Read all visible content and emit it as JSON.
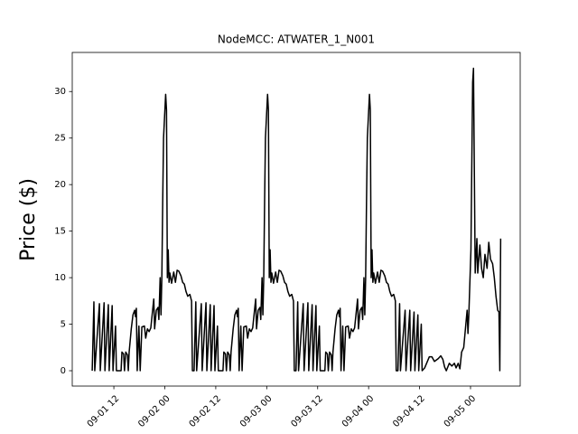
{
  "chart_data": {
    "type": "line",
    "title": "NodeMCC: ATWATER_1_N001",
    "ylabel": "Price ($)",
    "color": "#000000",
    "x": [
      6.9,
      7.3,
      7.5,
      8.6,
      8.8,
      9.7,
      9.9,
      10.7,
      10.9,
      11.6,
      11.8,
      12.4,
      12.6,
      13.7,
      13.9,
      14.3,
      14.5,
      14.8,
      15.2,
      15.4,
      15.6,
      16.1,
      16.5,
      16.9,
      17.1,
      17.3,
      17.5,
      17.9,
      18.2,
      18.6,
      19.2,
      19.5,
      19.9,
      20.3,
      20.7,
      21.4,
      21.6,
      22,
      22.4,
      22.6,
      22.9,
      23.1,
      23.3,
      23.5,
      23.7,
      24.2,
      24.4,
      24.6,
      24.8,
      25,
      25.2,
      25.6,
      26.1,
      26.5,
      26.9,
      27.3,
      27.8,
      28.2,
      28.6,
      29,
      29.4,
      29.9,
      30.3,
      30.5,
      30.9,
      31.3,
      31.5,
      32.6,
      32.8,
      33.7,
      33.9,
      34.7,
      34.9,
      35.6,
      35.8,
      36.4,
      36.6,
      37.7,
      37.9,
      38.3,
      38.5,
      38.8,
      39.2,
      39.4,
      39.6,
      40.1,
      40.5,
      40.9,
      41.1,
      41.3,
      41.5,
      41.9,
      42.2,
      42.6,
      43.2,
      43.5,
      43.9,
      44.3,
      44.7,
      45.4,
      45.6,
      46,
      46.4,
      46.6,
      46.9,
      47.1,
      47.3,
      47.5,
      47.7,
      48.2,
      48.4,
      48.6,
      48.8,
      49,
      49.2,
      49.6,
      50.1,
      50.5,
      50.9,
      51.3,
      51.8,
      52.2,
      52.6,
      53,
      53.4,
      53.9,
      54.3,
      54.5,
      54.9,
      55.3,
      55.5,
      56.6,
      56.8,
      57.7,
      57.9,
      58.7,
      58.9,
      59.6,
      59.8,
      60.4,
      60.6,
      61.7,
      61.9,
      62.3,
      62.5,
      62.8,
      63.2,
      63.4,
      63.6,
      64.1,
      64.5,
      64.9,
      65.1,
      65.3,
      65.5,
      65.9,
      66.2,
      66.6,
      67.2,
      67.5,
      67.9,
      68.3,
      68.7,
      69.4,
      69.6,
      70,
      70.4,
      70.6,
      70.9,
      71.1,
      71.3,
      71.5,
      71.7,
      72.2,
      72.4,
      72.6,
      72.8,
      73,
      73.2,
      73.6,
      74.1,
      74.5,
      74.9,
      75.3,
      75.8,
      76.2,
      76.6,
      77,
      77.4,
      77.9,
      78.3,
      78.5,
      78.9,
      79.3,
      79.5,
      80.6,
      80.8,
      81.7,
      81.9,
      82.7,
      82.9,
      83.6,
      83.8,
      84.4,
      84.6,
      85.2,
      86.3,
      86.9,
      87.5,
      88.4,
      89,
      89.5,
      89.9,
      90.3,
      91,
      91.6,
      92.2,
      92.6,
      93.1,
      93.5,
      93.9,
      94.4,
      94.8,
      95.2,
      95.4,
      95.6,
      96.1,
      96.5,
      96.7,
      97.1,
      97.5,
      97.7,
      98.2,
      98.6,
      99,
      99.4,
      99.9,
      100.3,
      100.7,
      101.2,
      101.6,
      102,
      102.4,
      102.7,
      102.9,
      103.1
    ],
    "values": [
      0,
      7.4,
      0,
      7.2,
      0,
      7.3,
      0,
      7.1,
      0,
      7,
      0,
      4.8,
      0,
      0,
      2,
      1.8,
      0,
      2,
      1.7,
      0,
      2,
      4.5,
      6,
      6.5,
      5.8,
      6.7,
      0,
      4.8,
      0,
      4.7,
      4.8,
      3.5,
      4.5,
      4.2,
      4.6,
      7.7,
      4.5,
      6.5,
      6.8,
      5.5,
      10,
      6,
      10,
      18,
      25,
      29.7,
      28,
      10,
      13,
      9.5,
      10.5,
      9.4,
      10.6,
      9.5,
      10.8,
      10.7,
      10.2,
      9.5,
      9.3,
      8.5,
      8,
      8.2,
      7.5,
      0,
      0,
      7.4,
      0,
      7.2,
      0,
      7.3,
      0,
      7.1,
      0,
      7,
      0,
      4.8,
      0,
      0,
      2,
      1.8,
      0,
      2,
      1.7,
      0,
      2,
      4.5,
      6,
      6.5,
      5.8,
      6.7,
      0,
      4.8,
      0,
      4.7,
      4.8,
      3.5,
      4.5,
      4.2,
      4.6,
      7.7,
      4.5,
      6.5,
      6.8,
      5.5,
      10,
      6,
      10,
      18,
      25,
      29.7,
      28,
      10,
      13,
      9.5,
      10.5,
      9.4,
      10.6,
      9.5,
      10.8,
      10.7,
      10.2,
      9.5,
      9.3,
      8.5,
      8,
      8.2,
      7.5,
      0,
      0,
      7.4,
      0,
      7.2,
      0,
      7.3,
      0,
      7.1,
      0,
      7,
      0,
      4.8,
      0,
      0,
      2,
      1.8,
      0,
      2,
      1.7,
      0,
      2,
      4.5,
      6,
      6.5,
      5.8,
      6.7,
      0,
      4.8,
      0,
      4.7,
      4.8,
      3.5,
      4.5,
      4.2,
      4.6,
      7.7,
      4.5,
      6.5,
      6.8,
      5.5,
      10,
      6,
      10,
      18,
      25,
      29.7,
      28,
      10,
      13,
      9.5,
      10.5,
      9.4,
      10.6,
      9.5,
      10.8,
      10.7,
      10.2,
      9.5,
      9.3,
      8.5,
      8,
      8.2,
      7.5,
      0,
      0,
      7.2,
      0,
      6.5,
      0,
      6.5,
      0,
      6.3,
      0,
      6,
      0,
      5,
      0,
      0.3,
      1.5,
      1.5,
      1,
      1.3,
      1.6,
      1.2,
      0.4,
      0,
      0.8,
      0.5,
      0.8,
      0.3,
      0.8,
      0.2,
      2,
      2.5,
      4.5,
      6.5,
      4,
      6,
      13,
      31,
      32.5,
      10.5,
      14.2,
      10.5,
      13.5,
      11,
      10,
      12.5,
      11,
      13.8,
      12,
      11.5,
      10,
      8,
      6.5,
      6.3,
      0,
      14.2
    ],
    "xlim": [
      2.2,
      107.7
    ],
    "xticks": [
      {
        "value": 12,
        "label": "09-01 12"
      },
      {
        "value": 24,
        "label": "09-02 00"
      },
      {
        "value": 36,
        "label": "09-02 12"
      },
      {
        "value": 48,
        "label": "09-03 00"
      },
      {
        "value": 60,
        "label": "09-03 12"
      },
      {
        "value": 72,
        "label": "09-04 00"
      },
      {
        "value": 84,
        "label": "09-04 12"
      },
      {
        "value": 96,
        "label": "09-05 00"
      }
    ],
    "ylim": [
      -1.65,
      34.2
    ],
    "yticks": [
      0,
      5,
      10,
      15,
      20,
      25,
      30
    ]
  }
}
